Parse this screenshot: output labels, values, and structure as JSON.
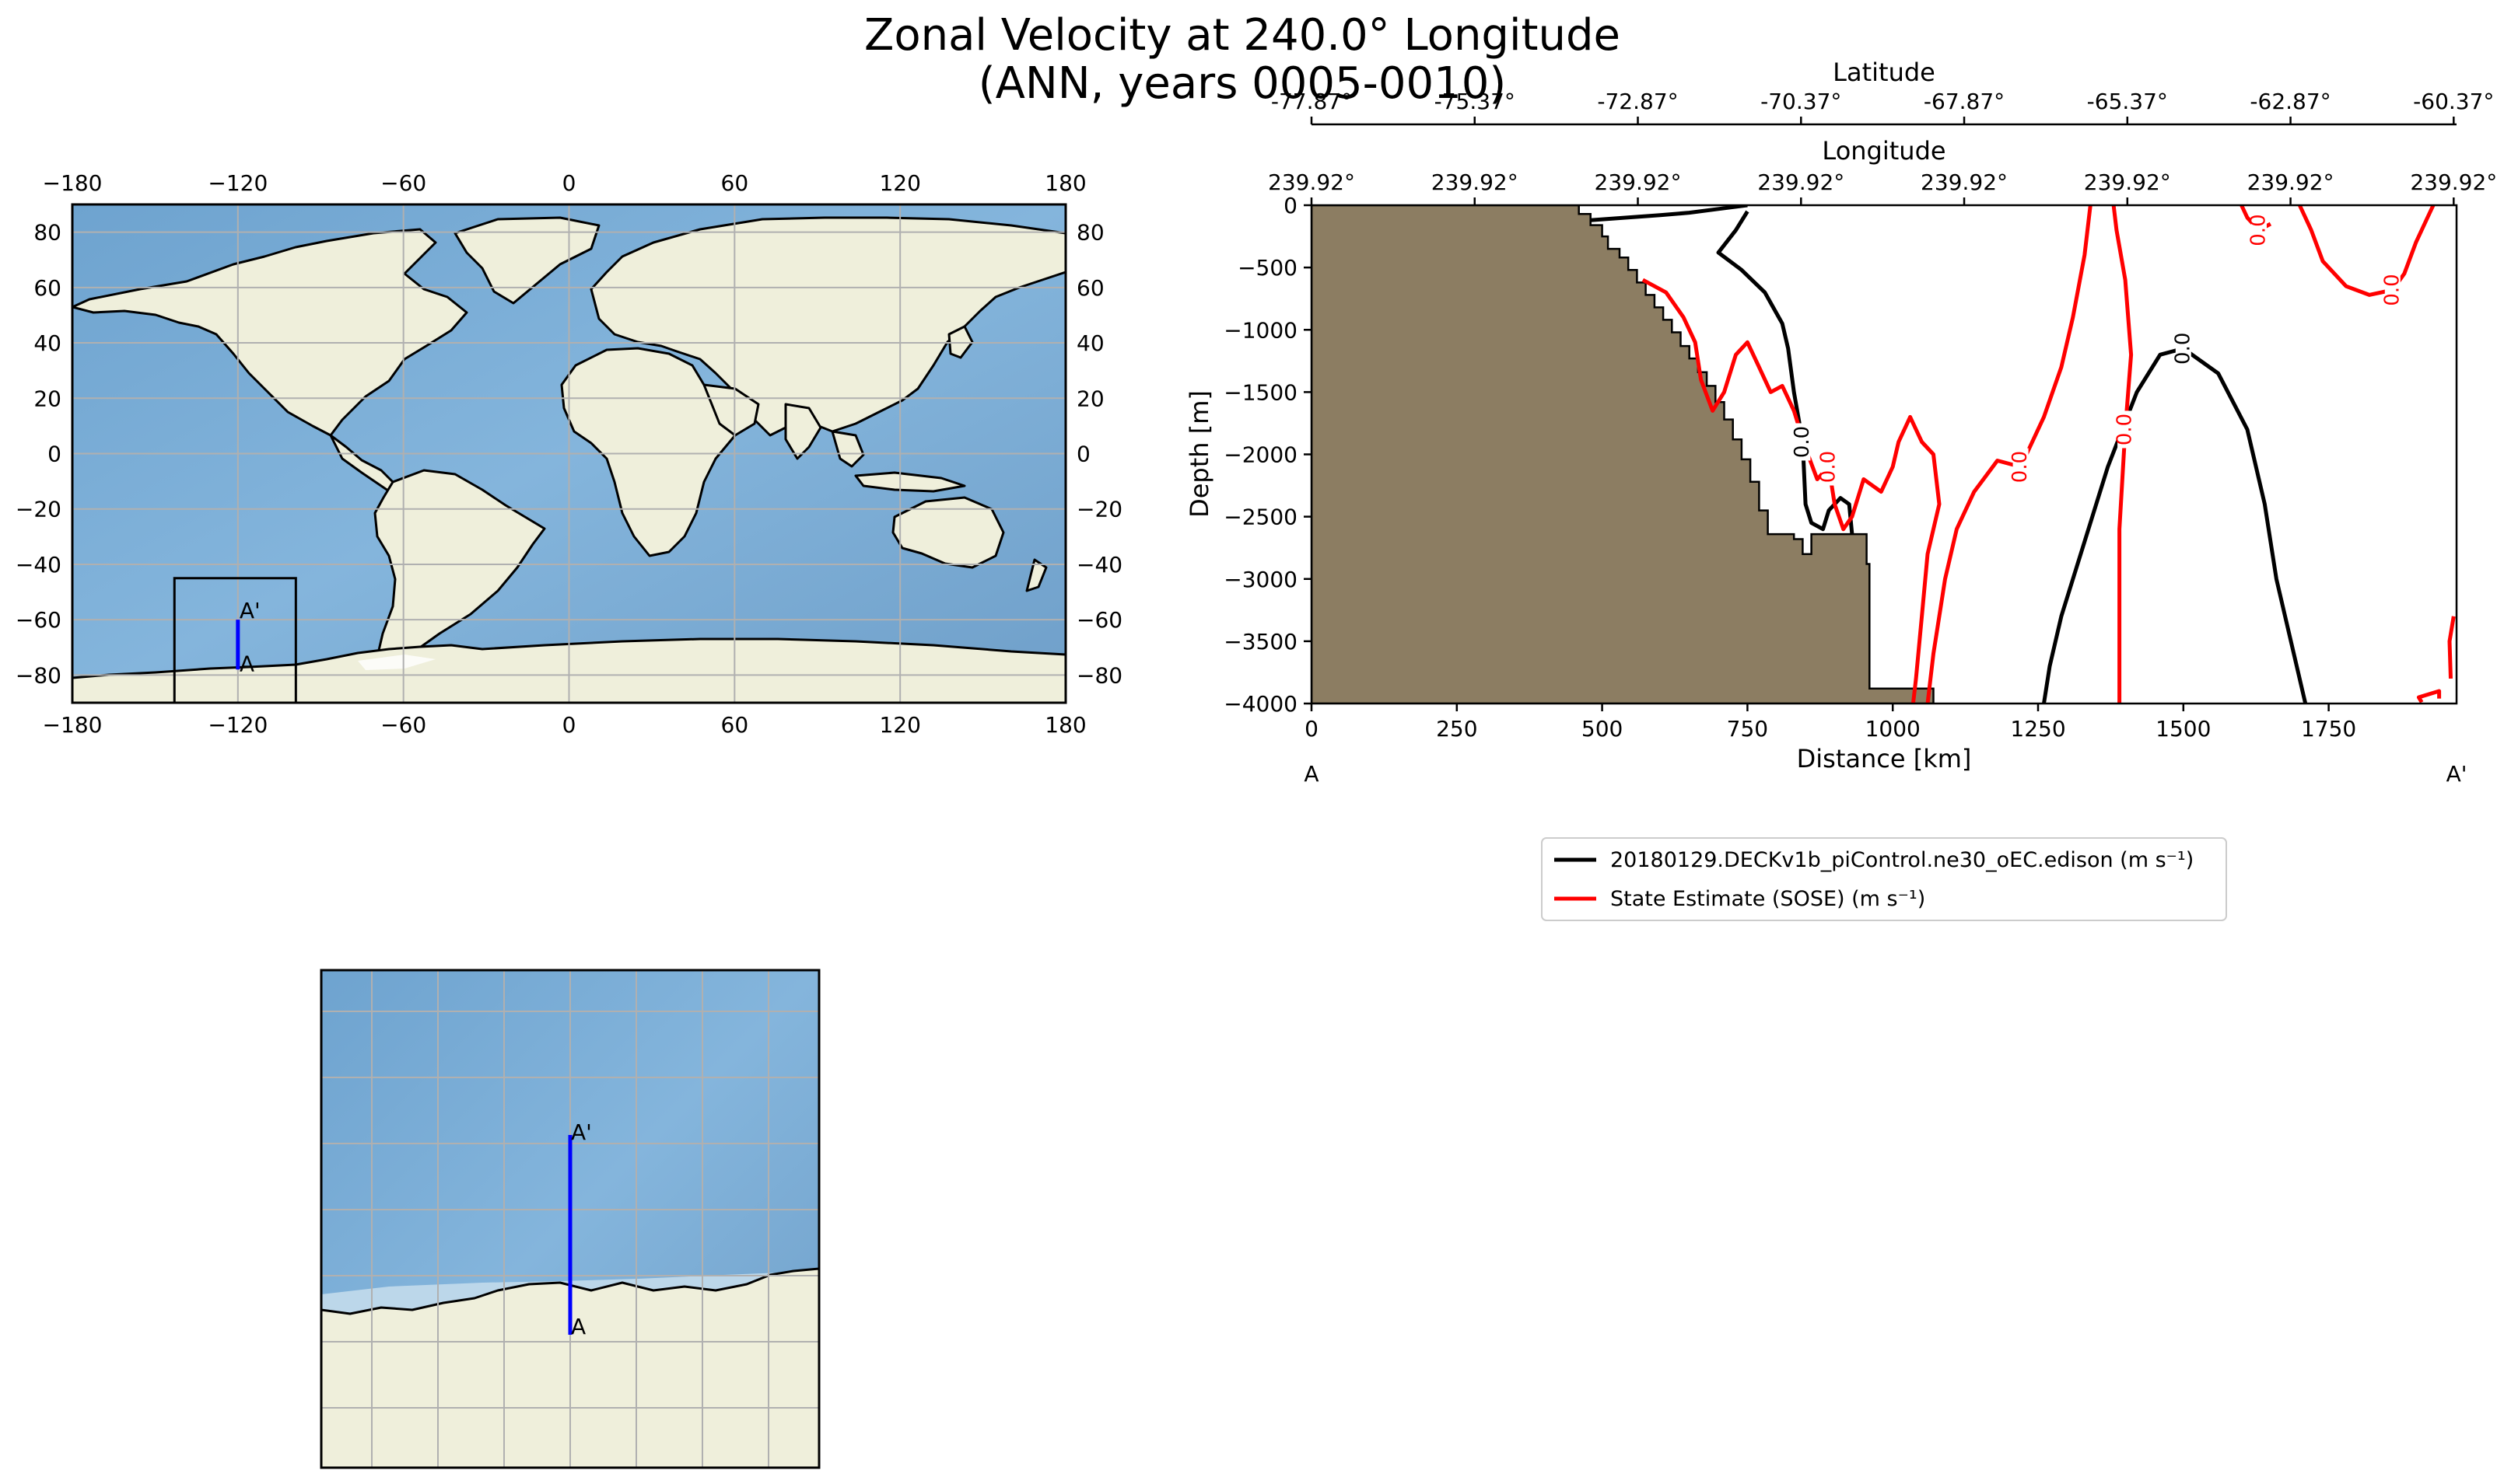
{
  "title": {
    "line1": "Zonal Velocity at 240.0° Longitude",
    "line2": "(ANN, years 0005-0010)"
  },
  "colors": {
    "ocean": "#7fb0d8",
    "land": "#efefdb",
    "bathymetry": "#8c7d62",
    "model_contour": "#000000",
    "obs_contour": "#ff0000",
    "transect": "#0000ff",
    "grid": "#b0b0b0"
  },
  "world_map": {
    "lon_ticks": [
      "−180",
      "−120",
      "−60",
      "0",
      "60",
      "120",
      "180"
    ],
    "lat_ticks": [
      "80",
      "60",
      "40",
      "20",
      "0",
      "−20",
      "−40",
      "−60",
      "−80"
    ],
    "lon_range": [
      -180,
      180
    ],
    "lat_range": [
      -90,
      90
    ],
    "inset_box": {
      "lon": [
        -143,
        -99
      ],
      "lat": [
        -90,
        -45
      ]
    },
    "transect": {
      "lon": -120,
      "lat_start": -78,
      "lat_end": -60
    },
    "label_start": "A",
    "label_end": "A'"
  },
  "zoom_map": {
    "label_start": "A",
    "label_end": "A'"
  },
  "chart_data": {
    "type": "line",
    "xlabel": "Distance [km]",
    "ylabel": "Depth [m]",
    "xlim": [
      0,
      1970
    ],
    "ylim": [
      -4000,
      0
    ],
    "x_ticks": [
      0,
      250,
      500,
      750,
      1000,
      1250,
      1500,
      1750
    ],
    "y_ticks": [
      0,
      -500,
      -1000,
      -1500,
      -2000,
      -2500,
      -3000,
      -3500,
      -4000
    ],
    "x_tick_labels": [
      "0",
      "250",
      "500",
      "750",
      "1000",
      "1250",
      "1500",
      "1750"
    ],
    "y_tick_labels": [
      "0",
      "−500",
      "−1000",
      "−1500",
      "−2000",
      "−2500",
      "−3000",
      "−3500",
      "−4000"
    ],
    "secondary_axes": [
      {
        "label": "Longitude",
        "tick_labels": [
          "239.92°",
          "239.92°",
          "239.92°",
          "239.92°",
          "239.92°",
          "239.92°",
          "239.92°",
          "239.92°"
        ]
      },
      {
        "label": "Latitude",
        "tick_labels": [
          "-77.87°",
          "-75.37°",
          "-72.87°",
          "-70.37°",
          "-67.87°",
          "-65.37°",
          "-62.87°",
          "-60.37°"
        ]
      }
    ],
    "endpoint_labels": {
      "start": "A",
      "end": "A'"
    },
    "bathymetry": [
      [
        0,
        0
      ],
      [
        460,
        0
      ],
      [
        460,
        -70
      ],
      [
        480,
        -70
      ],
      [
        480,
        -160
      ],
      [
        500,
        -160
      ],
      [
        500,
        -250
      ],
      [
        510,
        -250
      ],
      [
        510,
        -350
      ],
      [
        530,
        -350
      ],
      [
        530,
        -420
      ],
      [
        545,
        -420
      ],
      [
        545,
        -520
      ],
      [
        560,
        -520
      ],
      [
        560,
        -620
      ],
      [
        575,
        -620
      ],
      [
        575,
        -720
      ],
      [
        590,
        -720
      ],
      [
        590,
        -820
      ],
      [
        605,
        -820
      ],
      [
        605,
        -920
      ],
      [
        620,
        -920
      ],
      [
        620,
        -1020
      ],
      [
        635,
        -1020
      ],
      [
        635,
        -1130
      ],
      [
        650,
        -1130
      ],
      [
        650,
        -1230
      ],
      [
        665,
        -1230
      ],
      [
        665,
        -1340
      ],
      [
        680,
        -1340
      ],
      [
        680,
        -1450
      ],
      [
        695,
        -1450
      ],
      [
        695,
        -1580
      ],
      [
        710,
        -1580
      ],
      [
        710,
        -1720
      ],
      [
        725,
        -1720
      ],
      [
        725,
        -1880
      ],
      [
        740,
        -1880
      ],
      [
        740,
        -2040
      ],
      [
        755,
        -2040
      ],
      [
        755,
        -2220
      ],
      [
        770,
        -2220
      ],
      [
        770,
        -2450
      ],
      [
        785,
        -2450
      ],
      [
        785,
        -2640
      ],
      [
        830,
        -2640
      ],
      [
        830,
        -2680
      ],
      [
        845,
        -2680
      ],
      [
        845,
        -2800
      ],
      [
        860,
        -2800
      ],
      [
        860,
        -2640
      ],
      [
        955,
        -2640
      ],
      [
        955,
        -2880
      ],
      [
        960,
        -2880
      ],
      [
        960,
        -3880
      ],
      [
        1070,
        -3880
      ],
      [
        1070,
        -4000
      ],
      [
        0,
        -4000
      ]
    ],
    "series": [
      {
        "name": "20180129.DECKv1b_piControl.ne30_oEC.edison (m s⁻¹)",
        "contours": [
          {
            "points": [
              [
                750,
                0
              ],
              [
                700,
                -30
              ],
              [
                650,
                -60
              ],
              [
                600,
                -80
              ],
              [
                540,
                -100
              ],
              [
                480,
                -120
              ]
            ],
            "label": null
          },
          {
            "points": [
              [
                750,
                -50
              ],
              [
                730,
                -200
              ],
              [
                700,
                -380
              ],
              [
                740,
                -520
              ],
              [
                780,
                -700
              ],
              [
                810,
                -950
              ],
              [
                820,
                -1150
              ],
              [
                830,
                -1500
              ],
              [
                845,
                -1900
              ],
              [
                850,
                -2400
              ],
              [
                860,
                -2550
              ],
              [
                880,
                -2600
              ],
              [
                890,
                -2450
              ],
              [
                910,
                -2350
              ],
              [
                925,
                -2400
              ],
              [
                930,
                -2640
              ]
            ],
            "label": "0.0"
          },
          {
            "points": [
              [
                1260,
                -4000
              ],
              [
                1270,
                -3700
              ],
              [
                1290,
                -3300
              ],
              [
                1330,
                -2700
              ],
              [
                1370,
                -2100
              ],
              [
                1420,
                -1500
              ],
              [
                1460,
                -1200
              ],
              [
                1500,
                -1150
              ],
              [
                1560,
                -1350
              ],
              [
                1610,
                -1800
              ],
              [
                1640,
                -2400
              ],
              [
                1660,
                -3000
              ],
              [
                1690,
                -3600
              ],
              [
                1710,
                -4000
              ]
            ],
            "label": "0.0"
          }
        ]
      },
      {
        "name": "State Estimate (SOSE) (m s⁻¹)",
        "contours": [
          {
            "points": [
              [
                570,
                -600
              ],
              [
                610,
                -700
              ],
              [
                640,
                -900
              ],
              [
                660,
                -1100
              ],
              [
                670,
                -1400
              ],
              [
                690,
                -1650
              ],
              [
                710,
                -1500
              ],
              [
                730,
                -1200
              ],
              [
                750,
                -1100
              ],
              [
                770,
                -1300
              ],
              [
                790,
                -1500
              ],
              [
                810,
                -1450
              ],
              [
                830,
                -1650
              ],
              [
                850,
                -1950
              ],
              [
                870,
                -2200
              ],
              [
                890,
                -2100
              ],
              [
                900,
                -2400
              ],
              [
                915,
                -2600
              ],
              [
                930,
                -2500
              ],
              [
                950,
                -2200
              ],
              [
                980,
                -2300
              ],
              [
                1000,
                -2100
              ],
              [
                1010,
                -1900
              ],
              [
                1030,
                -1700
              ],
              [
                1050,
                -1900
              ],
              [
                1070,
                -2000
              ],
              [
                1080,
                -2400
              ],
              [
                1060,
                -2800
              ],
              [
                1050,
                -3300
              ],
              [
                1040,
                -3800
              ],
              [
                1035,
                -4000
              ]
            ],
            "label": "0.0"
          },
          {
            "points": [
              [
                1060,
                -4000
              ],
              [
                1070,
                -3600
              ],
              [
                1090,
                -3000
              ],
              [
                1110,
                -2600
              ],
              [
                1140,
                -2300
              ],
              [
                1180,
                -2050
              ],
              [
                1220,
                -2100
              ],
              [
                1260,
                -1700
              ],
              [
                1290,
                -1300
              ],
              [
                1310,
                -900
              ],
              [
                1330,
                -400
              ],
              [
                1340,
                0
              ]
            ],
            "label": "0.0"
          },
          {
            "points": [
              [
                1380,
                0
              ],
              [
                1385,
                -200
              ],
              [
                1400,
                -600
              ],
              [
                1410,
                -1200
              ],
              [
                1400,
                -1800
              ],
              [
                1390,
                -2600
              ],
              [
                1390,
                -3400
              ],
              [
                1390,
                -4000
              ]
            ],
            "label": "0.0"
          },
          {
            "points": [
              [
                1600,
                0
              ],
              [
                1610,
                -100
              ],
              [
                1630,
                -200
              ],
              [
                1650,
                -150
              ]
            ],
            "label": "0.0"
          },
          {
            "points": [
              [
                1700,
                0
              ],
              [
                1720,
                -200
              ],
              [
                1740,
                -450
              ],
              [
                1780,
                -650
              ],
              [
                1820,
                -720
              ],
              [
                1860,
                -680
              ],
              [
                1880,
                -550
              ],
              [
                1900,
                -300
              ],
              [
                1920,
                -100
              ],
              [
                1930,
                0
              ]
            ],
            "label": "0.0"
          },
          {
            "points": [
              [
                1910,
                -3990
              ],
              [
                1905,
                -3950
              ],
              [
                1940,
                -3900
              ],
              [
                1940,
                -3960
              ]
            ],
            "label": null
          },
          {
            "points": [
              [
                1965,
                -3300
              ],
              [
                1958,
                -3500
              ],
              [
                1960,
                -3800
              ]
            ],
            "label": null
          }
        ]
      }
    ],
    "legend": {
      "position": "below-right"
    }
  }
}
